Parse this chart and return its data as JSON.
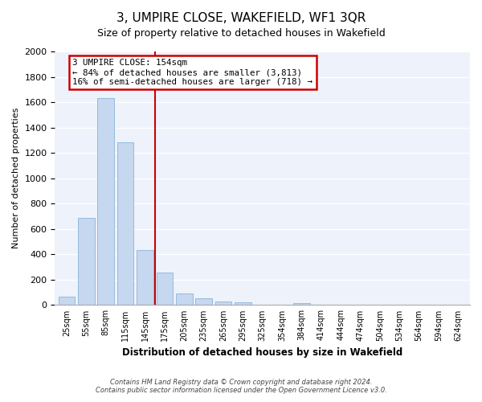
{
  "title": "3, UMPIRE CLOSE, WAKEFIELD, WF1 3QR",
  "subtitle": "Size of property relative to detached houses in Wakefield",
  "xlabel": "Distribution of detached houses by size in Wakefield",
  "ylabel": "Number of detached properties",
  "bar_labels": [
    "25sqm",
    "55sqm",
    "85sqm",
    "115sqm",
    "145sqm",
    "175sqm",
    "205sqm",
    "235sqm",
    "265sqm",
    "295sqm",
    "325sqm",
    "354sqm",
    "384sqm",
    "414sqm",
    "444sqm",
    "474sqm",
    "504sqm",
    "534sqm",
    "564sqm",
    "594sqm",
    "624sqm"
  ],
  "bar_values": [
    65,
    690,
    1635,
    1285,
    435,
    255,
    90,
    52,
    30,
    22,
    0,
    0,
    15,
    0,
    0,
    0,
    0,
    0,
    0,
    0,
    0
  ],
  "bar_color": "#c5d8f0",
  "bar_edge_color": "#7aaad0",
  "vline_position": 4.5,
  "vline_color": "#cc0000",
  "annotation_title": "3 UMPIRE CLOSE: 154sqm",
  "annotation_line1": "← 84% of detached houses are smaller (3,813)",
  "annotation_line2": "16% of semi-detached houses are larger (718) →",
  "annotation_box_color": "#ffffff",
  "annotation_box_edge": "#cc0000",
  "ylim": [
    0,
    2000
  ],
  "yticks": [
    0,
    200,
    400,
    600,
    800,
    1000,
    1200,
    1400,
    1600,
    1800,
    2000
  ],
  "footer_line1": "Contains HM Land Registry data © Crown copyright and database right 2024.",
  "footer_line2": "Contains public sector information licensed under the Open Government Licence v3.0.",
  "bg_color": "#ffffff",
  "plot_bg_color": "#eef2fb",
  "grid_color": "#ffffff",
  "title_fontsize": 11,
  "subtitle_fontsize": 9
}
